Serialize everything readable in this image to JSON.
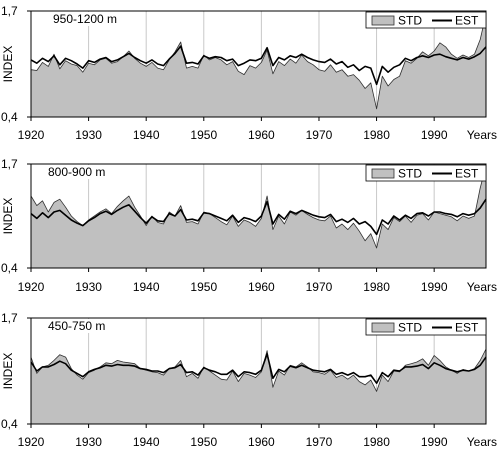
{
  "figure": {
    "colors": {
      "std_fill": "#c0c0c0",
      "std_stroke": "#303030",
      "est_line": "#000000",
      "grid": "#c8c8c8",
      "axis": "#000000"
    }
  },
  "chart_data": [
    {
      "type": "area",
      "title": "950-1200 m",
      "xlabel": "Years",
      "ylabel": "INDEX",
      "ylim": [
        0.4,
        1.7
      ],
      "y_tick_labels": [
        "0,4",
        "1,7"
      ],
      "x_tick_labels": [
        "1920",
        "1930",
        "1940",
        "1950",
        "1960",
        "1970",
        "1980",
        "1990"
      ],
      "x_range": [
        1920,
        1999
      ],
      "grid": "vertical",
      "legend": "top-right",
      "series": [
        {
          "name": "STD",
          "style": "filled-area",
          "x": [
            1920,
            1921,
            1922,
            1923,
            1924,
            1925,
            1926,
            1927,
            1928,
            1929,
            1930,
            1931,
            1932,
            1933,
            1934,
            1935,
            1936,
            1937,
            1938,
            1939,
            1940,
            1941,
            1942,
            1943,
            1944,
            1945,
            1946,
            1947,
            1948,
            1949,
            1950,
            1951,
            1952,
            1953,
            1954,
            1955,
            1956,
            1957,
            1958,
            1959,
            1960,
            1961,
            1962,
            1963,
            1964,
            1965,
            1966,
            1967,
            1968,
            1969,
            1970,
            1971,
            1972,
            1973,
            1974,
            1975,
            1976,
            1977,
            1978,
            1979,
            1980,
            1981,
            1982,
            1983,
            1984,
            1985,
            1986,
            1987,
            1988,
            1989,
            1990,
            1991,
            1992,
            1993,
            1994,
            1995,
            1996,
            1997,
            1998,
            1999
          ],
          "values": [
            0.98,
            0.97,
            1.07,
            1.02,
            1.17,
            0.99,
            1.09,
            1.05,
            1.03,
            0.95,
            1.06,
            1.04,
            1.1,
            1.12,
            1.06,
            1.08,
            1.14,
            1.21,
            1.12,
            1.06,
            1.02,
            1.07,
            1.0,
            0.98,
            1.1,
            1.2,
            1.32,
            1.0,
            1.02,
            1.0,
            1.16,
            1.1,
            1.13,
            1.1,
            1.04,
            1.08,
            0.96,
            0.92,
            1.03,
            1.0,
            1.07,
            1.22,
            0.93,
            1.08,
            1.03,
            1.11,
            1.06,
            1.16,
            1.08,
            1.04,
            0.98,
            0.96,
            1.04,
            0.95,
            0.98,
            0.9,
            0.92,
            0.85,
            0.75,
            0.82,
            0.5,
            0.9,
            0.78,
            0.86,
            0.9,
            1.09,
            1.06,
            1.12,
            1.2,
            1.15,
            1.21,
            1.31,
            1.26,
            1.17,
            1.12,
            1.16,
            1.13,
            1.17,
            1.35,
            1.66
          ]
        },
        {
          "name": "EST",
          "style": "line",
          "x": [
            1920,
            1921,
            1922,
            1923,
            1924,
            1925,
            1926,
            1927,
            1928,
            1929,
            1930,
            1931,
            1932,
            1933,
            1934,
            1935,
            1936,
            1937,
            1938,
            1939,
            1940,
            1941,
            1942,
            1943,
            1944,
            1945,
            1946,
            1947,
            1948,
            1949,
            1950,
            1951,
            1952,
            1953,
            1954,
            1955,
            1956,
            1957,
            1958,
            1959,
            1960,
            1961,
            1962,
            1963,
            1964,
            1965,
            1966,
            1967,
            1968,
            1969,
            1970,
            1971,
            1972,
            1973,
            1974,
            1975,
            1976,
            1977,
            1978,
            1979,
            1980,
            1981,
            1982,
            1983,
            1984,
            1985,
            1986,
            1987,
            1988,
            1989,
            1990,
            1991,
            1992,
            1993,
            1994,
            1995,
            1996,
            1997,
            1998,
            1999
          ],
          "values": [
            1.1,
            1.06,
            1.12,
            1.08,
            1.15,
            1.04,
            1.12,
            1.09,
            1.05,
            1.0,
            1.09,
            1.07,
            1.11,
            1.13,
            1.08,
            1.1,
            1.14,
            1.18,
            1.13,
            1.09,
            1.06,
            1.1,
            1.05,
            1.03,
            1.11,
            1.18,
            1.27,
            1.06,
            1.07,
            1.05,
            1.15,
            1.12,
            1.14,
            1.13,
            1.09,
            1.11,
            1.03,
            1.06,
            1.1,
            1.09,
            1.12,
            1.25,
            1.03,
            1.13,
            1.1,
            1.15,
            1.13,
            1.17,
            1.13,
            1.1,
            1.08,
            1.07,
            1.11,
            1.05,
            1.08,
            1.01,
            1.04,
            0.97,
            1.02,
            1.0,
            0.8,
            1.02,
            0.95,
            1.01,
            1.04,
            1.12,
            1.09,
            1.13,
            1.15,
            1.13,
            1.16,
            1.17,
            1.14,
            1.12,
            1.1,
            1.13,
            1.11,
            1.14,
            1.18,
            1.26
          ]
        }
      ]
    },
    {
      "type": "area",
      "title": "800-900 m",
      "xlabel": "Years",
      "ylabel": "INDEX",
      "ylim": [
        0.4,
        1.7
      ],
      "y_tick_labels": [
        "0,4",
        "1,7"
      ],
      "x_tick_labels": [
        "1920",
        "1930",
        "1940",
        "1950",
        "1960",
        "1970",
        "1980",
        "1990"
      ],
      "x_range": [
        1920,
        1999
      ],
      "grid": "vertical",
      "legend": "top-right",
      "series": [
        {
          "name": "STD",
          "style": "filled-area",
          "x": [
            1920,
            1921,
            1922,
            1923,
            1924,
            1925,
            1926,
            1927,
            1928,
            1929,
            1930,
            1931,
            1932,
            1933,
            1934,
            1935,
            1936,
            1937,
            1938,
            1939,
            1940,
            1941,
            1942,
            1943,
            1944,
            1945,
            1946,
            1947,
            1948,
            1949,
            1950,
            1951,
            1952,
            1953,
            1954,
            1955,
            1956,
            1957,
            1958,
            1959,
            1960,
            1961,
            1962,
            1963,
            1964,
            1965,
            1966,
            1967,
            1968,
            1969,
            1970,
            1971,
            1972,
            1973,
            1974,
            1975,
            1976,
            1977,
            1978,
            1979,
            1980,
            1981,
            1982,
            1983,
            1984,
            1985,
            1986,
            1987,
            1988,
            1989,
            1990,
            1991,
            1992,
            1993,
            1994,
            1995,
            1996,
            1997,
            1998,
            1999
          ],
          "values": [
            1.3,
            1.18,
            1.24,
            1.1,
            1.22,
            1.26,
            1.16,
            1.05,
            0.98,
            0.93,
            1.0,
            1.05,
            1.1,
            1.14,
            1.08,
            1.17,
            1.24,
            1.3,
            1.16,
            1.05,
            0.93,
            1.05,
            0.97,
            0.95,
            1.1,
            1.05,
            1.18,
            0.97,
            0.98,
            0.95,
            1.1,
            1.08,
            1.03,
            0.98,
            0.94,
            1.05,
            0.92,
            1.0,
            0.97,
            0.92,
            1.02,
            1.3,
            0.88,
            1.05,
            0.95,
            1.1,
            1.06,
            1.12,
            1.07,
            1.03,
            1.0,
            0.99,
            1.05,
            0.9,
            0.95,
            0.88,
            0.96,
            0.86,
            0.74,
            0.83,
            0.65,
            0.95,
            0.88,
            1.03,
            0.98,
            1.05,
            0.97,
            1.06,
            1.08,
            1.0,
            1.1,
            1.08,
            1.06,
            1.04,
            0.99,
            1.05,
            1.02,
            1.05,
            1.4,
            1.68
          ]
        },
        {
          "name": "EST",
          "style": "line",
          "x": [
            1920,
            1921,
            1922,
            1923,
            1924,
            1925,
            1926,
            1927,
            1928,
            1929,
            1930,
            1931,
            1932,
            1933,
            1934,
            1935,
            1936,
            1937,
            1938,
            1939,
            1940,
            1941,
            1942,
            1943,
            1944,
            1945,
            1946,
            1947,
            1948,
            1949,
            1950,
            1951,
            1952,
            1953,
            1954,
            1955,
            1956,
            1957,
            1958,
            1959,
            1960,
            1961,
            1962,
            1963,
            1964,
            1965,
            1966,
            1967,
            1968,
            1969,
            1970,
            1971,
            1972,
            1973,
            1974,
            1975,
            1976,
            1977,
            1978,
            1979,
            1980,
            1981,
            1982,
            1983,
            1984,
            1985,
            1986,
            1987,
            1988,
            1989,
            1990,
            1991,
            1992,
            1993,
            1994,
            1995,
            1996,
            1997,
            1998,
            1999
          ],
          "values": [
            1.08,
            1.02,
            1.09,
            1.03,
            1.1,
            1.12,
            1.06,
            1.0,
            0.96,
            0.93,
            0.99,
            1.03,
            1.08,
            1.11,
            1.07,
            1.12,
            1.16,
            1.19,
            1.11,
            1.03,
            0.96,
            1.04,
            0.99,
            0.98,
            1.08,
            1.05,
            1.13,
            1.0,
            1.01,
            0.99,
            1.09,
            1.08,
            1.05,
            1.02,
            0.99,
            1.06,
            0.97,
            1.03,
            1.01,
            0.98,
            1.05,
            1.23,
            0.95,
            1.07,
            1.01,
            1.11,
            1.08,
            1.12,
            1.09,
            1.06,
            1.04,
            1.03,
            1.07,
            0.98,
            1.01,
            0.97,
            1.02,
            0.95,
            0.98,
            0.92,
            0.82,
            1.0,
            0.95,
            1.05,
            1.0,
            1.06,
            1.02,
            1.08,
            1.09,
            1.05,
            1.1,
            1.1,
            1.08,
            1.07,
            1.04,
            1.08,
            1.06,
            1.08,
            1.15,
            1.26
          ]
        }
      ]
    },
    {
      "type": "area",
      "title": "450-750 m",
      "xlabel": "Years",
      "ylabel": "INDEX",
      "ylim": [
        0.4,
        1.7
      ],
      "y_tick_labels": [
        "0,4",
        "1,7"
      ],
      "x_tick_labels": [
        "1920",
        "1930",
        "1940",
        "1950",
        "1960",
        "1970",
        "1980",
        "1990"
      ],
      "x_range": [
        1920,
        1999
      ],
      "grid": "vertical",
      "legend": "top-right",
      "series": [
        {
          "name": "STD",
          "style": "filled-area",
          "x": [
            1920,
            1921,
            1922,
            1923,
            1924,
            1925,
            1926,
            1927,
            1928,
            1929,
            1930,
            1931,
            1932,
            1933,
            1934,
            1935,
            1936,
            1937,
            1938,
            1939,
            1940,
            1941,
            1942,
            1943,
            1944,
            1945,
            1946,
            1947,
            1948,
            1949,
            1950,
            1951,
            1952,
            1953,
            1954,
            1955,
            1956,
            1957,
            1958,
            1959,
            1960,
            1961,
            1962,
            1963,
            1964,
            1965,
            1966,
            1967,
            1968,
            1969,
            1970,
            1971,
            1972,
            1973,
            1974,
            1975,
            1976,
            1977,
            1978,
            1979,
            1980,
            1981,
            1982,
            1983,
            1984,
            1985,
            1986,
            1987,
            1988,
            1989,
            1990,
            1991,
            1992,
            1993,
            1994,
            1995,
            1996,
            1997,
            1998,
            1999
          ],
          "values": [
            1.22,
            1.02,
            1.1,
            1.12,
            1.18,
            1.25,
            1.22,
            1.08,
            1.0,
            0.95,
            1.03,
            1.06,
            1.1,
            1.15,
            1.14,
            1.18,
            1.16,
            1.15,
            1.14,
            1.08,
            1.06,
            1.04,
            1.03,
            1.0,
            1.08,
            1.1,
            1.18,
            0.98,
            1.02,
            0.96,
            1.1,
            1.05,
            1.0,
            0.95,
            0.94,
            1.05,
            0.92,
            1.02,
            1.0,
            0.97,
            1.04,
            1.3,
            0.85,
            1.05,
            1.0,
            1.12,
            1.1,
            1.15,
            1.1,
            1.04,
            1.03,
            1.01,
            1.06,
            0.97,
            1.0,
            0.95,
            1.0,
            0.92,
            0.88,
            0.94,
            0.8,
            1.0,
            0.92,
            1.05,
            1.04,
            1.12,
            1.14,
            1.16,
            1.2,
            1.12,
            1.24,
            1.18,
            1.1,
            1.06,
            1.02,
            1.07,
            1.05,
            1.08,
            1.18,
            1.32
          ]
        },
        {
          "name": "EST",
          "style": "line",
          "x": [
            1920,
            1921,
            1922,
            1923,
            1924,
            1925,
            1926,
            1927,
            1928,
            1929,
            1930,
            1931,
            1932,
            1933,
            1934,
            1935,
            1936,
            1937,
            1938,
            1939,
            1940,
            1941,
            1942,
            1943,
            1944,
            1945,
            1946,
            1947,
            1948,
            1949,
            1950,
            1951,
            1952,
            1953,
            1954,
            1955,
            1956,
            1957,
            1958,
            1959,
            1960,
            1961,
            1962,
            1963,
            1964,
            1965,
            1966,
            1967,
            1968,
            1969,
            1970,
            1971,
            1972,
            1973,
            1974,
            1975,
            1976,
            1977,
            1978,
            1979,
            1980,
            1981,
            1982,
            1983,
            1984,
            1985,
            1986,
            1987,
            1988,
            1989,
            1990,
            1991,
            1992,
            1993,
            1994,
            1995,
            1996,
            1997,
            1998,
            1999
          ],
          "values": [
            1.16,
            1.05,
            1.1,
            1.1,
            1.13,
            1.17,
            1.14,
            1.06,
            1.02,
            0.98,
            1.04,
            1.07,
            1.09,
            1.12,
            1.11,
            1.13,
            1.12,
            1.12,
            1.11,
            1.08,
            1.07,
            1.05,
            1.05,
            1.03,
            1.08,
            1.09,
            1.13,
            1.03,
            1.04,
            1.0,
            1.09,
            1.06,
            1.04,
            1.01,
            1.01,
            1.06,
            0.98,
            1.04,
            1.03,
            1.01,
            1.06,
            1.26,
            0.96,
            1.07,
            1.04,
            1.11,
            1.09,
            1.12,
            1.09,
            1.06,
            1.05,
            1.04,
            1.07,
            1.01,
            1.03,
            1.0,
            1.03,
            0.98,
            0.98,
            1.0,
            0.9,
            1.03,
            0.98,
            1.06,
            1.05,
            1.1,
            1.1,
            1.11,
            1.13,
            1.08,
            1.15,
            1.12,
            1.08,
            1.06,
            1.04,
            1.06,
            1.05,
            1.07,
            1.12,
            1.22
          ]
        }
      ]
    }
  ]
}
